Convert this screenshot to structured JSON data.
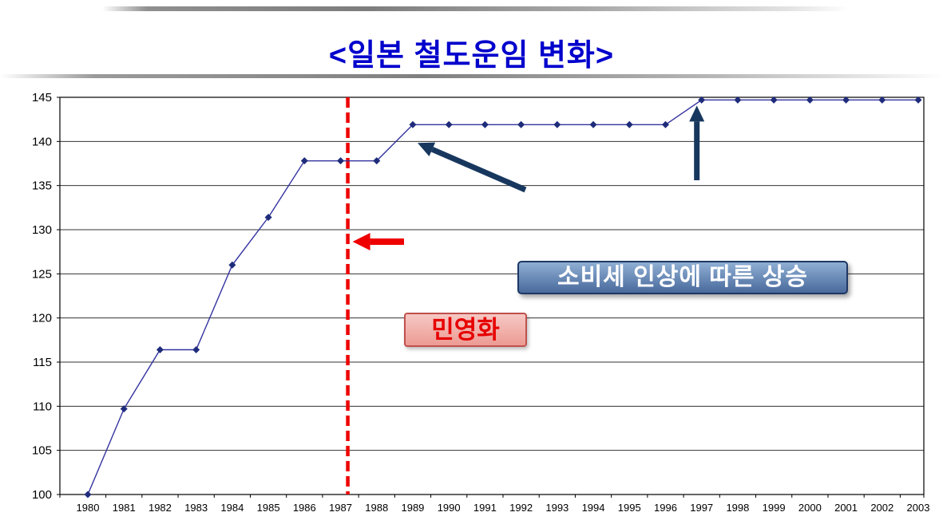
{
  "title": "<일본 철도운임 변화>",
  "colors": {
    "title_blue": "#0000CC",
    "line": "#3333A0",
    "marker": "#1F2C7B",
    "navy_arrow": "#17375E",
    "red": "#EE0000",
    "tax_box_light": "#8FAFD4",
    "tax_box_dark": "#49699C",
    "tax_box_border": "#1F3864",
    "priv_box_light": "#F6C8C4",
    "priv_box_dark": "#EC9B93",
    "priv_box_border": "#C0504D",
    "priv_text": "#E60000"
  },
  "chart_data": {
    "type": "line",
    "title": "<일본 철도운임 변화>",
    "x": [
      1980,
      1981,
      1982,
      1983,
      1984,
      1985,
      1986,
      1987,
      1988,
      1989,
      1990,
      1991,
      1992,
      1993,
      1994,
      1995,
      1996,
      1997,
      1998,
      1999,
      2000,
      2001,
      2002,
      2003
    ],
    "series": [
      {
        "values": [
          100,
          109.7,
          116.4,
          116.4,
          126.0,
          131.4,
          137.8,
          137.8,
          137.8,
          141.9,
          141.9,
          141.9,
          141.9,
          141.9,
          141.9,
          141.9,
          141.9,
          144.7,
          144.7,
          144.7,
          144.7,
          144.7,
          144.7,
          144.7
        ]
      }
    ],
    "ylim": [
      100,
      145
    ],
    "ytick_step": 5,
    "grid": true,
    "legend": false,
    "marker": "diamond",
    "vline": {
      "x": 1987.2,
      "style": "dashed",
      "color_key": "red",
      "label": "민영화"
    },
    "callout": {
      "label": "소비세 인상에 따른 상승",
      "arrow_targets_x": [
        1989,
        1997
      ]
    }
  }
}
